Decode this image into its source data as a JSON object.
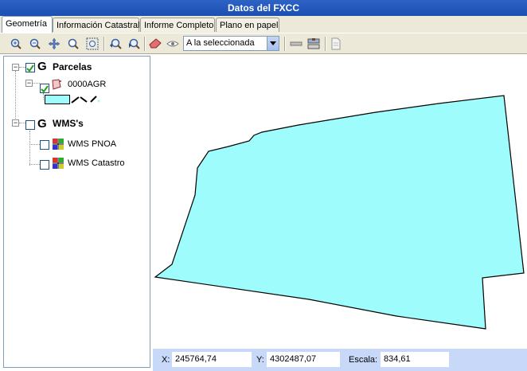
{
  "window": {
    "title": "Datos del FXCC"
  },
  "tabs": [
    {
      "label": "Geometría",
      "active": true
    },
    {
      "label": "Información Catastral",
      "active": false
    },
    {
      "label": "Informe Completo",
      "active": false
    },
    {
      "label": "Plano en papel",
      "active": false
    }
  ],
  "toolbar": {
    "zoom_mode": {
      "selected": "A la seleccionada"
    },
    "icons": [
      "zoom-in-icon",
      "zoom-out-icon",
      "pan-icon",
      "zoom-window-icon",
      "zoom-extent-icon",
      "zoom-previous-icon",
      "zoom-next-icon",
      "eraser-icon",
      "eye-icon",
      "measure-icon",
      "layers-icon",
      "document-icon"
    ]
  },
  "layers": {
    "groups": [
      {
        "badge": "G",
        "name": "Parcelas",
        "checked": true,
        "items": [
          {
            "name": "0000AGR",
            "checked": true,
            "fill_color": "#9ffcfc"
          }
        ]
      },
      {
        "badge": "G",
        "name": "WMS's",
        "checked": false,
        "items": [
          {
            "name": "WMS PNOA",
            "checked": false
          },
          {
            "name": "WMS Catastro",
            "checked": false
          }
        ]
      }
    ]
  },
  "map": {
    "parcel_fill": "#9ffcfc",
    "parcel_stroke": "#000000"
  },
  "status": {
    "x_label": "X:",
    "x_value": "245764,74",
    "y_label": "Y:",
    "y_value": "4302487,07",
    "scale_label": "Escala:",
    "scale_value": "834,61"
  }
}
